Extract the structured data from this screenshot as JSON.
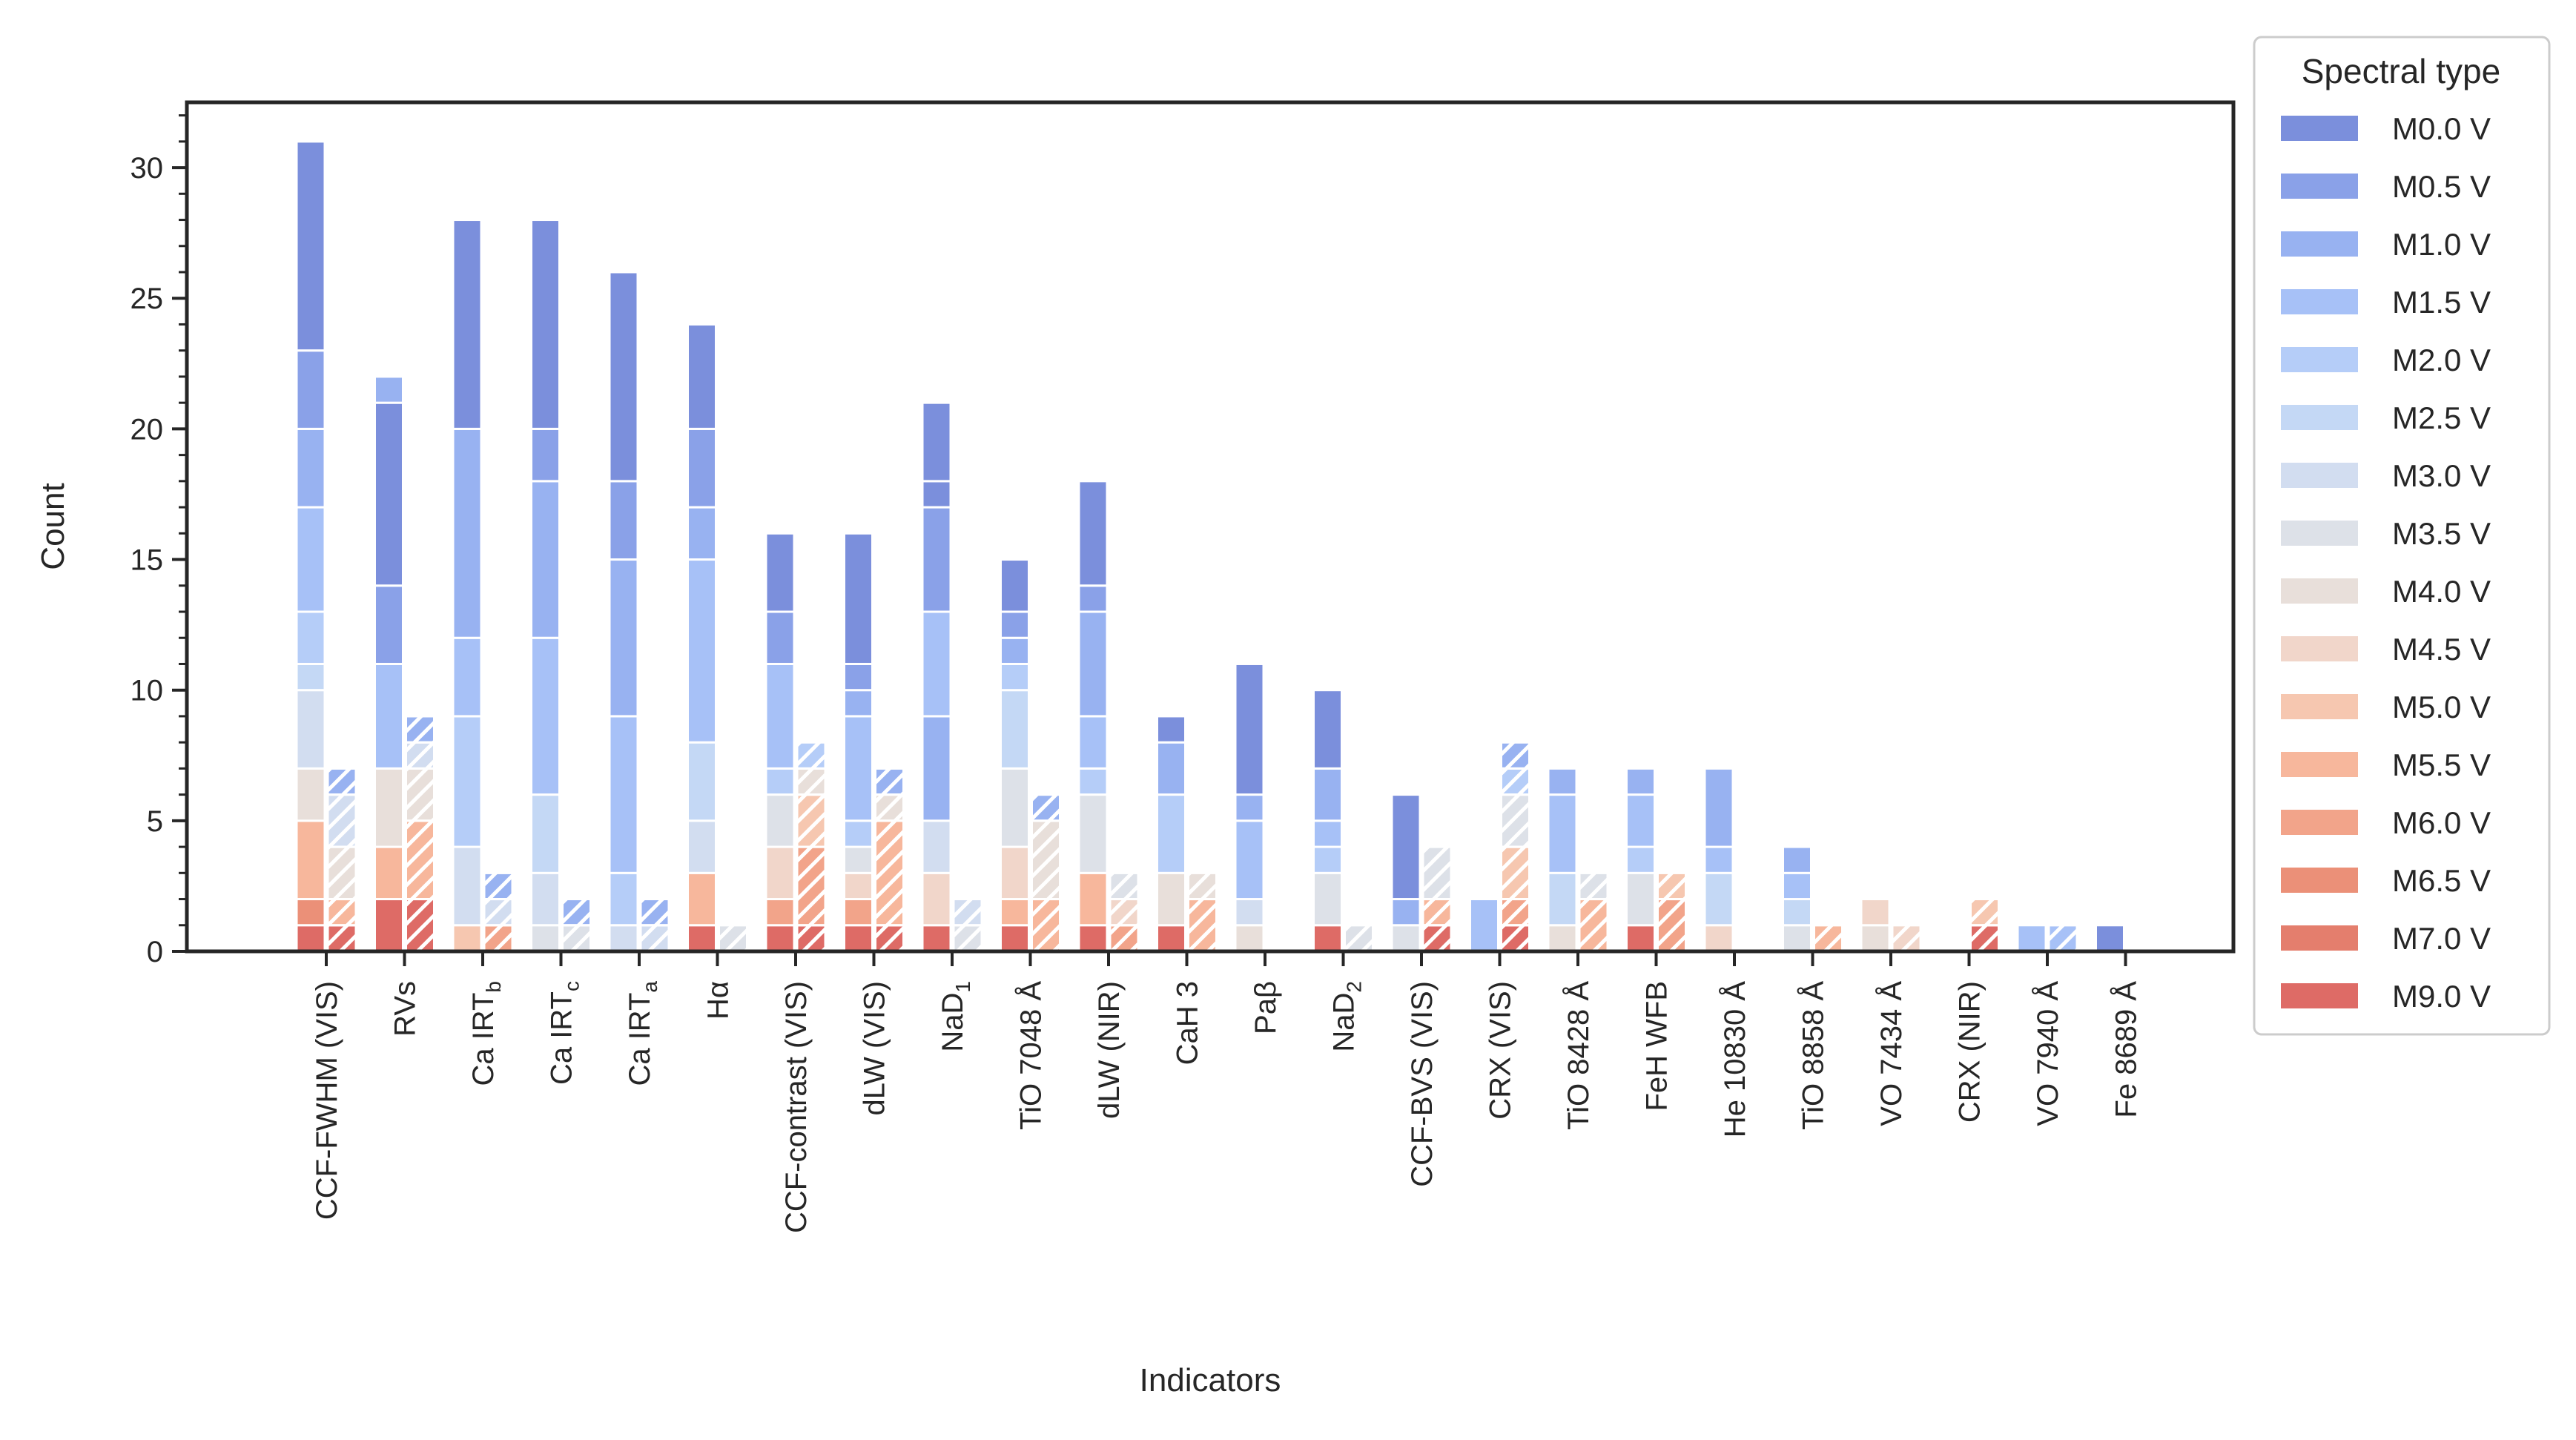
{
  "chart_data": {
    "type": "bar",
    "title": "",
    "xlabel": "Indicators",
    "ylabel": "Count",
    "ylim": [
      0,
      32.5
    ],
    "yticks": [
      0,
      5,
      10,
      15,
      20,
      25,
      30
    ],
    "grid": false,
    "legend": {
      "title": "Spectral type",
      "placement": "outside right"
    },
    "categories": [
      "CCF-FWHM (VIS)",
      "RVs",
      "Ca IRT_b",
      "Ca IRT_c",
      "Ca IRT_a",
      "Hα",
      "CCF-contrast (VIS)",
      "dLW (VIS)",
      "NaD_1",
      "TiO 7048 Å",
      "dLW (NIR)",
      "CaH 3",
      "Paβ",
      "NaD_2",
      "CCF-BVS (VIS)",
      "CRX (VIS)",
      "TiO 8428 Å",
      "FeH WFB",
      "He 10830 Å",
      "TiO 8858 Å",
      "VO 7434 Å",
      "CRX (NIR)",
      "VO 7940 Å",
      "Fe 8689 Å"
    ],
    "category_display": [
      {
        "base": "CCF-FWHM (VIS)"
      },
      {
        "base": "RVs"
      },
      {
        "base": "Ca IRT",
        "sub": "b"
      },
      {
        "base": "Ca IRT",
        "sub": "c"
      },
      {
        "base": "Ca IRT",
        "sub": "a"
      },
      {
        "base": "Hα"
      },
      {
        "base": "CCF-contrast (VIS)"
      },
      {
        "base": "dLW (VIS)"
      },
      {
        "base": "NaD",
        "sub": "1"
      },
      {
        "base": "TiO 7048 Å"
      },
      {
        "base": "dLW (NIR)"
      },
      {
        "base": "CaH 3"
      },
      {
        "base": "Paβ"
      },
      {
        "base": "NaD",
        "sub": "2"
      },
      {
        "base": "CCF-BVS (VIS)"
      },
      {
        "base": "CRX (VIS)"
      },
      {
        "base": "TiO 8428 Å"
      },
      {
        "base": "FeH WFB"
      },
      {
        "base": "He 10830 Å"
      },
      {
        "base": "TiO 8858 Å"
      },
      {
        "base": "VO 7434 Å"
      },
      {
        "base": "CRX (NIR)"
      },
      {
        "base": "VO 7940 Å"
      },
      {
        "base": "Fe 8689 Å"
      }
    ],
    "spectral_types": [
      "M0.0 V",
      "M0.5 V",
      "M1.0 V",
      "M1.5 V",
      "M2.0 V",
      "M2.5 V",
      "M3.0 V",
      "M3.5 V",
      "M4.0 V",
      "M4.5 V",
      "M5.0 V",
      "M5.5 V",
      "M6.0 V",
      "M6.5 V",
      "M7.0 V",
      "M9.0 V"
    ],
    "colors": [
      "#7b8fdc",
      "#8aa1e8",
      "#98b2f1",
      "#a7c1f7",
      "#b5cdf8",
      "#c4d8f5",
      "#d2ddf0",
      "#dde1e8",
      "#e8dfda",
      "#f1d6ca",
      "#f6c7b0",
      "#f7b79c",
      "#f2a48a",
      "#eb9078",
      "#e47e6d",
      "#de6b66"
    ],
    "series_order_bottom_to_top": "reverse (M9.0 V at bottom, M0.0 V at top)",
    "series": [
      {
        "name": "stack-solid",
        "hatch": false,
        "values": [
          {
            "M9.0 V": 1,
            "M6.5 V": 1,
            "M5.5 V": 3,
            "M4.0 V": 2,
            "M3.0 V": 3,
            "M2.5 V": 1,
            "M2.0 V": 2,
            "M1.5 V": 4,
            "M1.0 V": 3,
            "M0.5 V": 3,
            "M0.0 V": 8
          },
          {
            "M9.0 V": 2,
            "M5.5 V": 2,
            "M4.0 V": 3,
            "M1.5 V": 4,
            "M0.5 V": 3,
            "M0.0 V": 7,
            "M1.0 V": 1
          },
          {
            "M5.0 V": 1,
            "M3.0 V": 3,
            "M2.0 V": 5,
            "M1.5 V": 3,
            "M1.0 V": 8,
            "M0.0 V": 8
          },
          {
            "M3.5 V": 1,
            "M3.0 V": 2,
            "M2.5 V": 3,
            "M1.5 V": 6,
            "M1.0 V": 6,
            "M0.5 V": 2,
            "M0.0 V": 8
          },
          {
            "M3.0 V": 1,
            "M2.0 V": 2,
            "M1.5 V": 6,
            "M1.0 V": 6,
            "M0.5 V": 3,
            "M0.0 V": 8
          },
          {
            "M9.0 V": 1,
            "M5.5 V": 2,
            "M3.0 V": 2,
            "M2.5 V": 3,
            "M1.5 V": 7,
            "M1.0 V": 2,
            "M0.5 V": 3,
            "M0.0 V": 4
          },
          {
            "M9.0 V": 1,
            "M6.0 V": 1,
            "M4.5 V": 2,
            "M3.5 V": 2,
            "M2.0 V": 1,
            "M1.5 V": 4,
            "M0.5 V": 2,
            "M0.0 V": 3
          },
          {
            "M9.0 V": 1,
            "M6.0 V": 1,
            "M4.5 V": 1,
            "M3.5 V": 1,
            "M2.0 V": 1,
            "M1.5 V": 4,
            "M1.0 V": 1,
            "M0.5 V": 1,
            "M0.0 V": 5
          },
          {
            "M9.0 V": 1,
            "M4.5 V": 2,
            "M3.0 V": 2,
            "M1.0 V": 4,
            "M1.5 V": 4,
            "M0.5 V": 4,
            "M0.0 V": 1,
            "M0.0 V ": 3
          },
          {
            "M9.0 V": 1,
            "M5.5 V": 1,
            "M4.5 V": 2,
            "M3.5 V": 3,
            "M2.5 V": 3,
            "M2.0 V": 1,
            "M1.0 V": 1,
            "M0.5 V": 1,
            "M0.0 V": 2
          },
          {
            "M9.0 V": 1,
            "M5.5 V": 2,
            "M3.5 V": 3,
            "M2.0 V": 1,
            "M1.5 V": 2,
            "M1.0 V": 4,
            "M0.5 V": 1,
            "M0.0 V": 4
          },
          {
            "M9.0 V": 1,
            "M4.0 V": 2,
            "M2.0 V": 3,
            "M1.0 V": 2,
            "M0.0 V": 1
          },
          {
            "M4.0 V": 1,
            "M3.0 V": 1,
            "M1.5 V": 3,
            "M1.0 V": 1,
            "M0.0 V": 5
          },
          {
            "M9.0 V": 1,
            "M3.5 V": 2,
            "M2.0 V": 1,
            "M1.5 V": 1,
            "M1.0 V": 2,
            "M0.0 V": 3
          },
          {
            "M3.5 V": 1,
            "M1.0 V": 1,
            "M0.0 V": 4
          },
          {
            "M1.5 V": 2
          },
          {
            "M4.0 V": 1,
            "M2.5 V": 2,
            "M1.5 V": 3,
            "M1.0 V": 1
          },
          {
            "M9.0 V": 1,
            "M3.5 V": 2,
            "M2.0 V": 1,
            "M1.5 V": 2,
            "M1.0 V": 1
          },
          {
            "M4.5 V": 1,
            "M2.5 V": 2,
            "M1.5 V": 1,
            "M1.0 V": 3
          },
          {
            "M3.5 V": 1,
            "M2.5 V": 1,
            "M1.5 V": 1,
            "M1.0 V": 1
          },
          {
            "M4.0 V": 1,
            "M4.5 V": 1
          },
          {},
          {
            "M1.5 V": 1
          },
          {
            "M0.0 V": 1
          }
        ]
      },
      {
        "name": "stack-hatched",
        "hatch": true,
        "values": [
          {
            "M9.0 V": 1,
            "M5.5 V": 1,
            "M4.0 V": 2,
            "M3.0 V": 2,
            "M1.0 V": 1
          },
          {
            "M9.0 V": 2,
            "M5.5 V": 3,
            "M4.0 V": 2,
            "M3.0 V": 1,
            "M1.0 V": 1
          },
          {
            "M6.0 V": 1,
            "M3.0 V": 1,
            "M1.0 V": 1
          },
          {
            "M3.5 V": 1,
            "M1.0 V": 1
          },
          {
            "M3.0 V": 1,
            "M1.0 V": 1
          },
          {
            "M3.5 V": 1
          },
          {
            "M9.0 V": 1,
            "M6.0 V": 3,
            "M5.0 V": 2,
            "M4.0 V": 1,
            "M2.0 V": 1
          },
          {
            "M9.0 V": 1,
            "M5.5 V": 4,
            "M4.0 V": 1,
            "M1.0 V": 1
          },
          {
            "M3.5 V": 1,
            "M3.0 V": 1
          },
          {
            "M5.5 V": 2,
            "M4.0 V": 3,
            "M1.0 V": 1
          },
          {
            "M6.0 V": 1,
            "M4.5 V": 1,
            "M3.5 V": 1
          },
          {
            "M5.5 V": 2,
            "M4.0 V": 1
          },
          {},
          {
            "M3.5 V": 1
          },
          {
            "M9.0 V": 1,
            "M5.5 V": 1,
            "M3.5 V": 2
          },
          {
            "M9.0 V": 1,
            "M6.0 V": 1,
            "M5.0 V": 2,
            "M3.5 V": 2,
            "M2.0 V": 1,
            "M1.0 V": 1
          },
          {
            "M5.5 V": 2,
            "M3.5 V": 1
          },
          {
            "M6.0 V": 2,
            "M5.0 V": 1
          },
          {},
          {
            "M5.5 V": 1
          },
          {
            "M4.5 V": 1
          },
          {
            "M9.0 V": 1,
            "M5.0 V": 1
          },
          {
            "M1.5 V": 1
          },
          {}
        ]
      }
    ]
  }
}
